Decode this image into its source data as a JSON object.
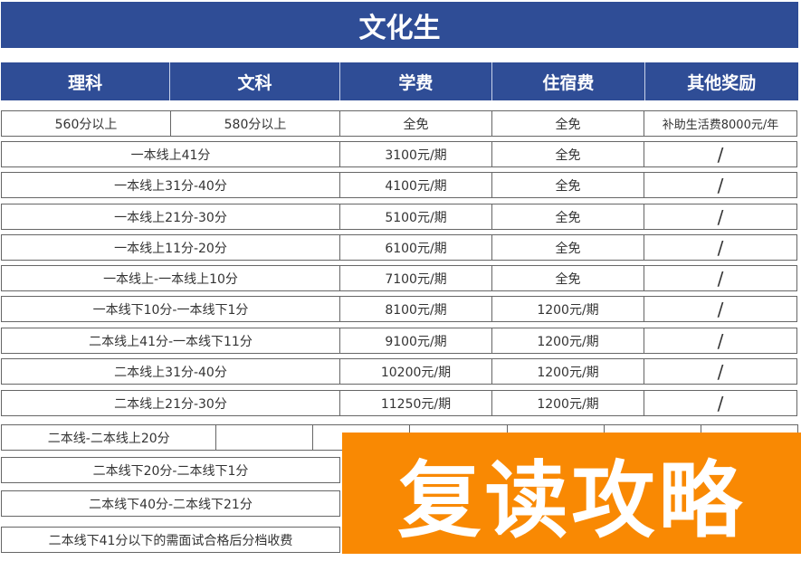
{
  "title": "文化生",
  "headers": [
    "理科",
    "文科",
    "学费",
    "住宿费",
    "其他奖励"
  ],
  "first_row": {
    "science": "560分以上",
    "arts": "580分以上",
    "tuition": "全免",
    "boarding": "全免",
    "reward": "补助生活费8000元/年"
  },
  "rows": [
    {
      "range": "一本线上41分",
      "tuition": "3100元/期",
      "boarding": "全免",
      "reward": "/"
    },
    {
      "range": "一本线上31分-40分",
      "tuition": "4100元/期",
      "boarding": "全免",
      "reward": "/"
    },
    {
      "range": "一本线上21分-30分",
      "tuition": "5100元/期",
      "boarding": "全免",
      "reward": "/"
    },
    {
      "range": "一本线上11分-20分",
      "tuition": "6100元/期",
      "boarding": "全免",
      "reward": "/"
    },
    {
      "range": "一本线上-一本线上10分",
      "tuition": "7100元/期",
      "boarding": "全免",
      "reward": "/"
    },
    {
      "range": "一本线下10分-一本线下1分",
      "tuition": "8100元/期",
      "boarding": "1200元/期",
      "reward": "/"
    },
    {
      "range": "二本线上41分-一本线下11分",
      "tuition": "9100元/期",
      "boarding": "1200元/期",
      "reward": "/"
    },
    {
      "range": "二本线上31分-40分",
      "tuition": "10200元/期",
      "boarding": "1200元/期",
      "reward": "/"
    },
    {
      "range": "二本线上21分-30分",
      "tuition": "11250元/期",
      "boarding": "1200元/期",
      "reward": "/"
    },
    {
      "range": "二本线-二本线上20分"
    },
    {
      "range": "二本线下20分-二本线下1分"
    },
    {
      "range": "二本线下40分-二本线下21分"
    },
    {
      "range": "二本线下41分以下的需面试合格后分档收费"
    }
  ],
  "overlay": "复读攻略",
  "colors": {
    "header": "#2f4d96",
    "overlay": "#f98903"
  }
}
